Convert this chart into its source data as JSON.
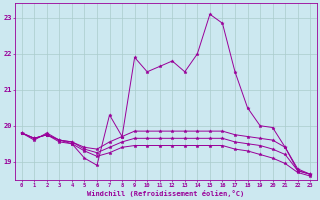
{
  "xlabel": "Windchill (Refroidissement éolien,°C)",
  "background_color": "#cce8f0",
  "line_color": "#990099",
  "grid_color": "#aacccc",
  "xlim": [
    -0.5,
    23.5
  ],
  "ylim": [
    18.5,
    23.4
  ],
  "xticks": [
    0,
    1,
    2,
    3,
    4,
    5,
    6,
    7,
    8,
    9,
    10,
    11,
    12,
    13,
    14,
    15,
    16,
    17,
    18,
    19,
    20,
    21,
    22,
    23
  ],
  "yticks": [
    19,
    20,
    21,
    22,
    23
  ],
  "series": [
    [
      19.8,
      19.6,
      19.8,
      19.6,
      19.5,
      19.1,
      18.9,
      20.3,
      19.7,
      21.9,
      21.5,
      21.65,
      21.8,
      21.5,
      22.0,
      23.1,
      22.85,
      21.5,
      20.5,
      20.0,
      19.95,
      19.4,
      18.75,
      18.65
    ],
    [
      19.8,
      19.65,
      19.75,
      19.6,
      19.55,
      19.4,
      19.35,
      19.55,
      19.7,
      19.85,
      19.85,
      19.85,
      19.85,
      19.85,
      19.85,
      19.85,
      19.85,
      19.75,
      19.7,
      19.65,
      19.6,
      19.4,
      18.8,
      18.65
    ],
    [
      19.8,
      19.65,
      19.75,
      19.6,
      19.55,
      19.35,
      19.25,
      19.4,
      19.55,
      19.65,
      19.65,
      19.65,
      19.65,
      19.65,
      19.65,
      19.65,
      19.65,
      19.55,
      19.5,
      19.45,
      19.35,
      19.2,
      18.75,
      18.65
    ],
    [
      19.8,
      19.65,
      19.75,
      19.55,
      19.5,
      19.3,
      19.15,
      19.25,
      19.4,
      19.45,
      19.45,
      19.45,
      19.45,
      19.45,
      19.45,
      19.45,
      19.45,
      19.35,
      19.3,
      19.2,
      19.1,
      18.95,
      18.7,
      18.6
    ]
  ]
}
